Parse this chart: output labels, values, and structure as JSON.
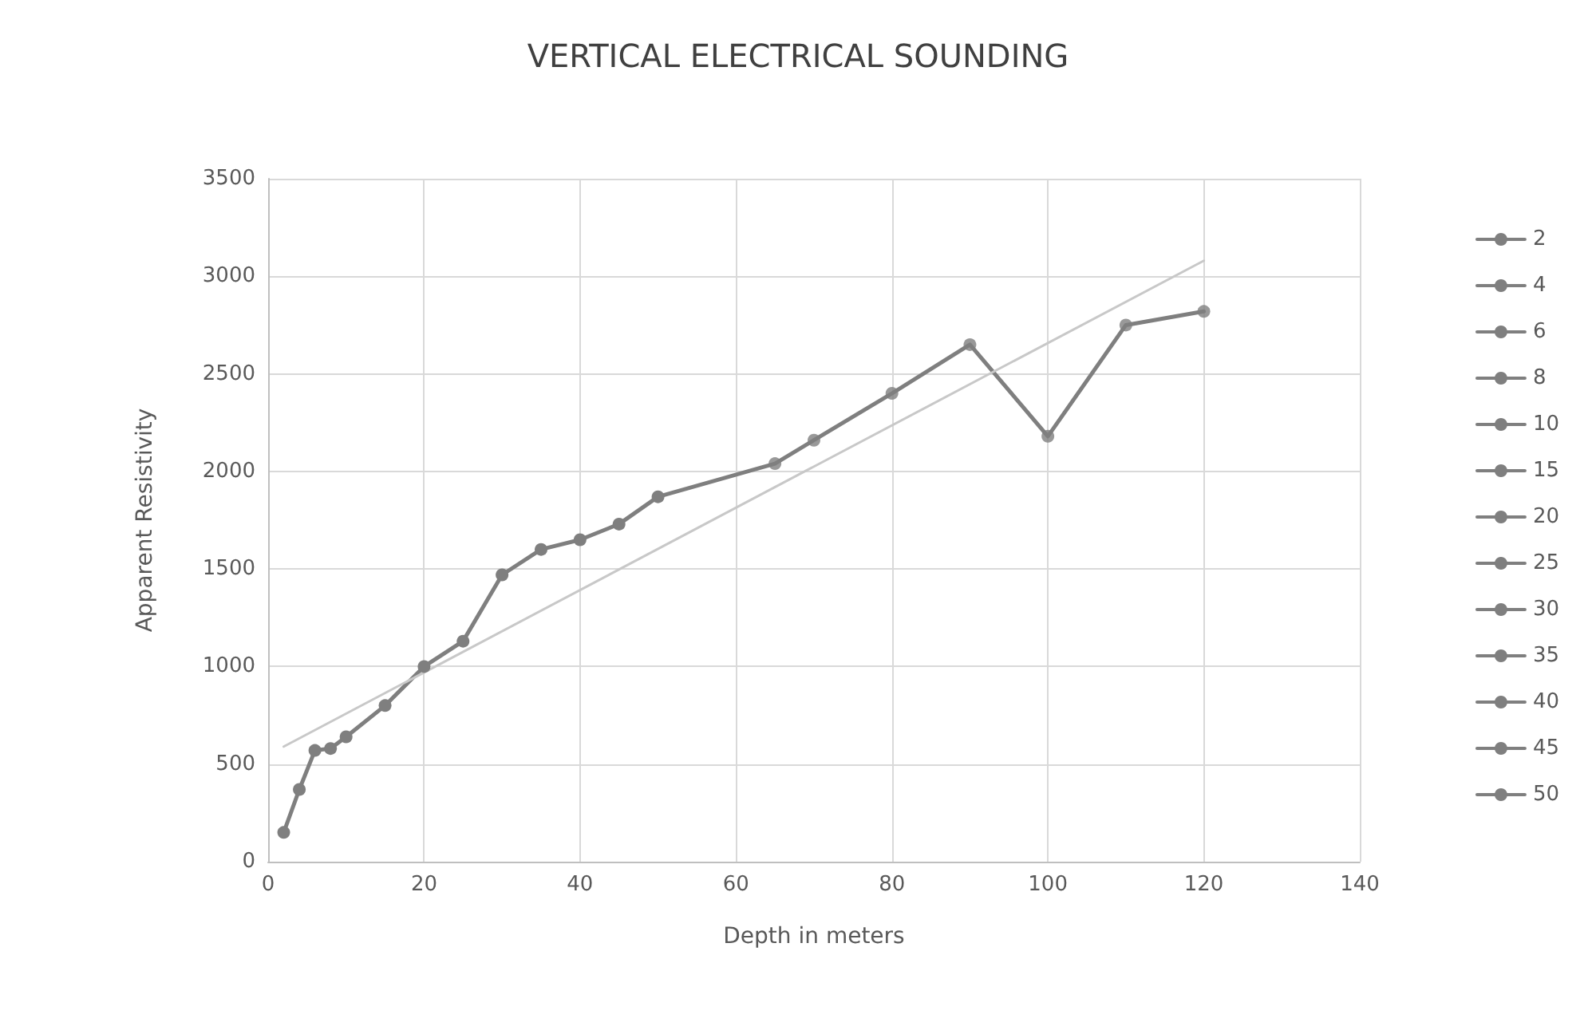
{
  "chart_data": {
    "type": "line",
    "title": "VERTICAL ELECTRICAL SOUNDING",
    "xlabel": "Depth in meters",
    "ylabel": "Apparent Resistivity",
    "x": [
      2,
      4,
      6,
      8,
      10,
      15,
      20,
      25,
      30,
      35,
      40,
      45,
      50,
      65,
      70,
      80,
      90,
      100,
      110,
      120
    ],
    "xlim": [
      0,
      140
    ],
    "xticks": [
      0,
      20,
      40,
      60,
      80,
      100,
      120,
      140
    ],
    "ylim": [
      0,
      3500
    ],
    "yticks": [
      0,
      500,
      1000,
      1500,
      2000,
      2500,
      3000,
      3500
    ],
    "grid": true,
    "legend": "right",
    "marker": "circle",
    "line_style": "solid",
    "series": [
      {
        "color": "#7f7f7f",
        "marker": "none",
        "values": [
          150,
          370,
          570,
          580,
          640,
          800,
          1000,
          1130,
          1470,
          1600,
          1650,
          1730,
          1870,
          2040,
          2160,
          2400,
          2650,
          2180,
          2750,
          2820
        ]
      },
      {
        "name": "2",
        "color": "#7f7f7f",
        "x": [
          2
        ],
        "values": [
          150
        ]
      },
      {
        "name": "4",
        "color": "#7f7f7f",
        "x": [
          4
        ],
        "values": [
          370
        ]
      },
      {
        "name": "6",
        "color": "#7f7f7f",
        "x": [
          6
        ],
        "values": [
          570
        ]
      },
      {
        "name": "8",
        "color": "#7f7f7f",
        "x": [
          8
        ],
        "values": [
          580
        ]
      },
      {
        "name": "10",
        "color": "#7f7f7f",
        "x": [
          10
        ],
        "values": [
          640
        ]
      },
      {
        "name": "15",
        "color": "#7f7f7f",
        "x": [
          15
        ],
        "values": [
          800
        ]
      },
      {
        "name": "20",
        "color": "#7f7f7f",
        "x": [
          20
        ],
        "values": [
          1000
        ]
      },
      {
        "name": "25",
        "color": "#7f7f7f",
        "x": [
          25
        ],
        "values": [
          1130
        ]
      },
      {
        "name": "30",
        "color": "#7f7f7f",
        "x": [
          30
        ],
        "values": [
          1470
        ]
      },
      {
        "name": "35",
        "color": "#7f7f7f",
        "x": [
          35
        ],
        "values": [
          1600
        ]
      },
      {
        "name": "40",
        "color": "#7f7f7f",
        "x": [
          40
        ],
        "values": [
          1650
        ]
      },
      {
        "name": "45",
        "color": "#7f7f7f",
        "x": [
          45
        ],
        "values": [
          1730
        ]
      },
      {
        "name": "50",
        "color": "#7f7f7f",
        "x": [
          50
        ],
        "values": [
          1870
        ]
      },
      {
        "type": "scatter",
        "color": "#7f7f7f",
        "x": [
          65,
          70,
          80,
          90,
          100,
          110,
          120
        ],
        "values": [
          2040,
          2160,
          2400,
          2650,
          2180,
          2750,
          2820
        ]
      },
      {
        "color": "#c8c8c8",
        "x": [
          2,
          120
        ],
        "values": [
          590,
          3080
        ],
        "marker": "none"
      }
    ]
  }
}
